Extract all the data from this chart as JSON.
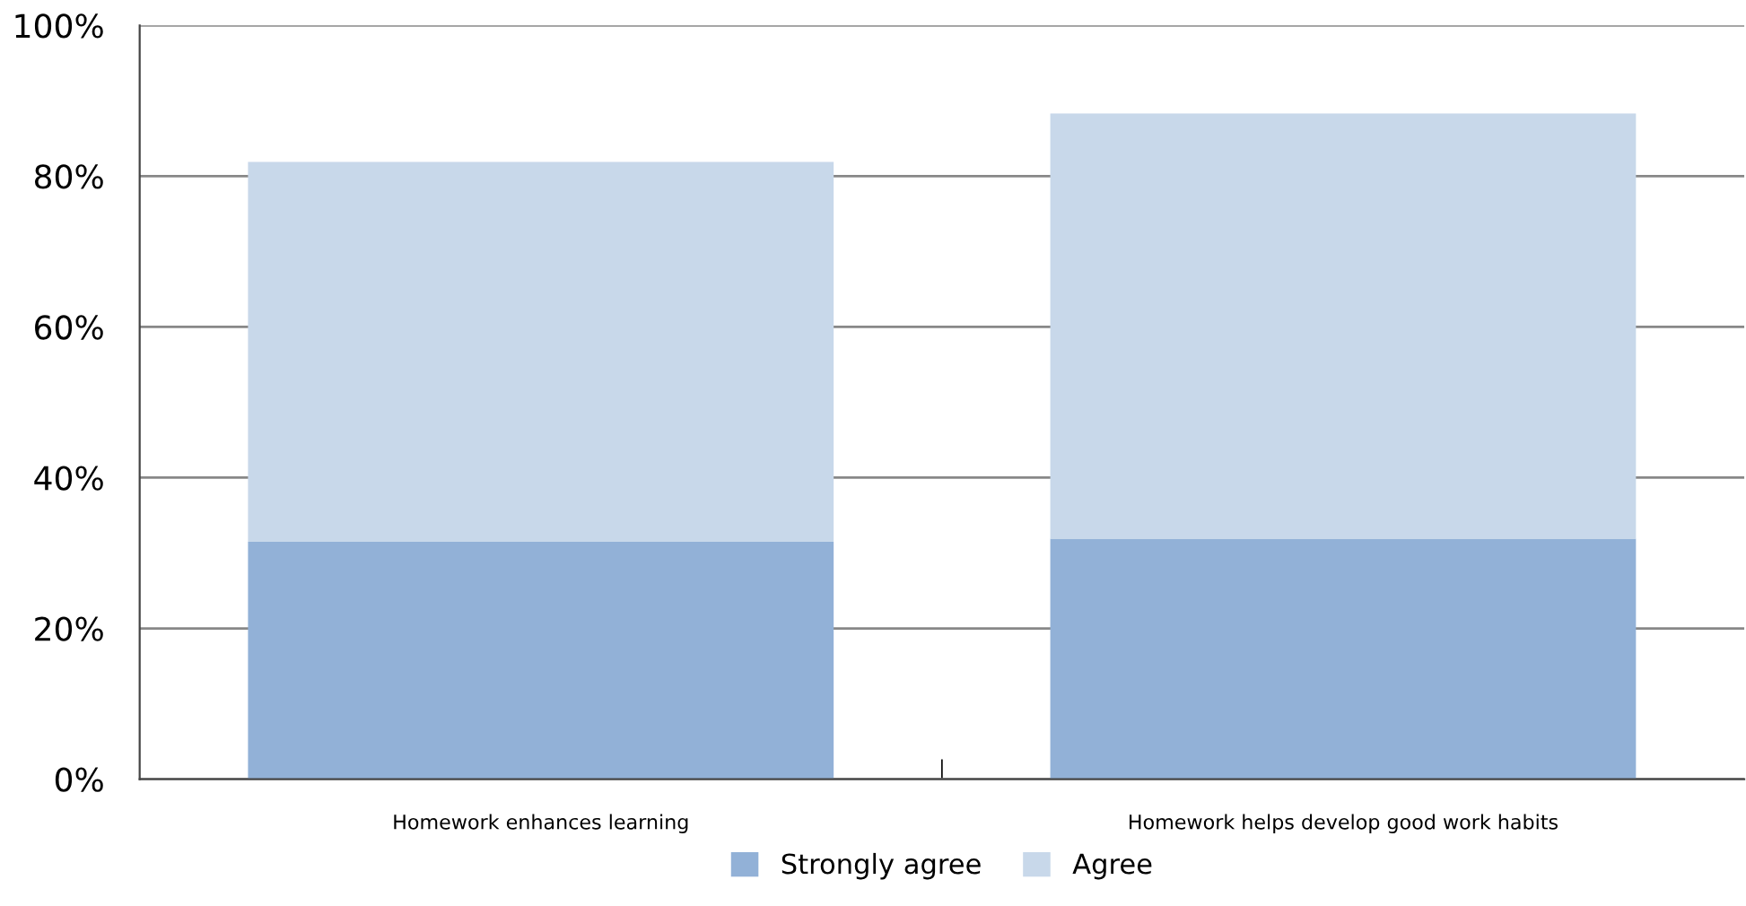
{
  "chart_data": {
    "type": "bar",
    "stacked": true,
    "categories": [
      "Homework enhances learning",
      "Homework helps develop good work habits"
    ],
    "series": [
      {
        "name": "Strongly agree",
        "color": "#92b1d7",
        "values": [
          31.5,
          31.9
        ]
      },
      {
        "name": "Agree",
        "color": "#c8d8ea",
        "values": [
          50.4,
          56.4
        ]
      }
    ],
    "ylim": [
      0,
      100
    ],
    "yticks": [
      {
        "value": 0,
        "label": "0%"
      },
      {
        "value": 20,
        "label": "20%"
      },
      {
        "value": 40,
        "label": "40%"
      },
      {
        "value": 60,
        "label": "60%"
      },
      {
        "value": 80,
        "label": "80%"
      },
      {
        "value": 100,
        "label": "100%"
      }
    ],
    "grid": "y",
    "legend": "bottom"
  }
}
